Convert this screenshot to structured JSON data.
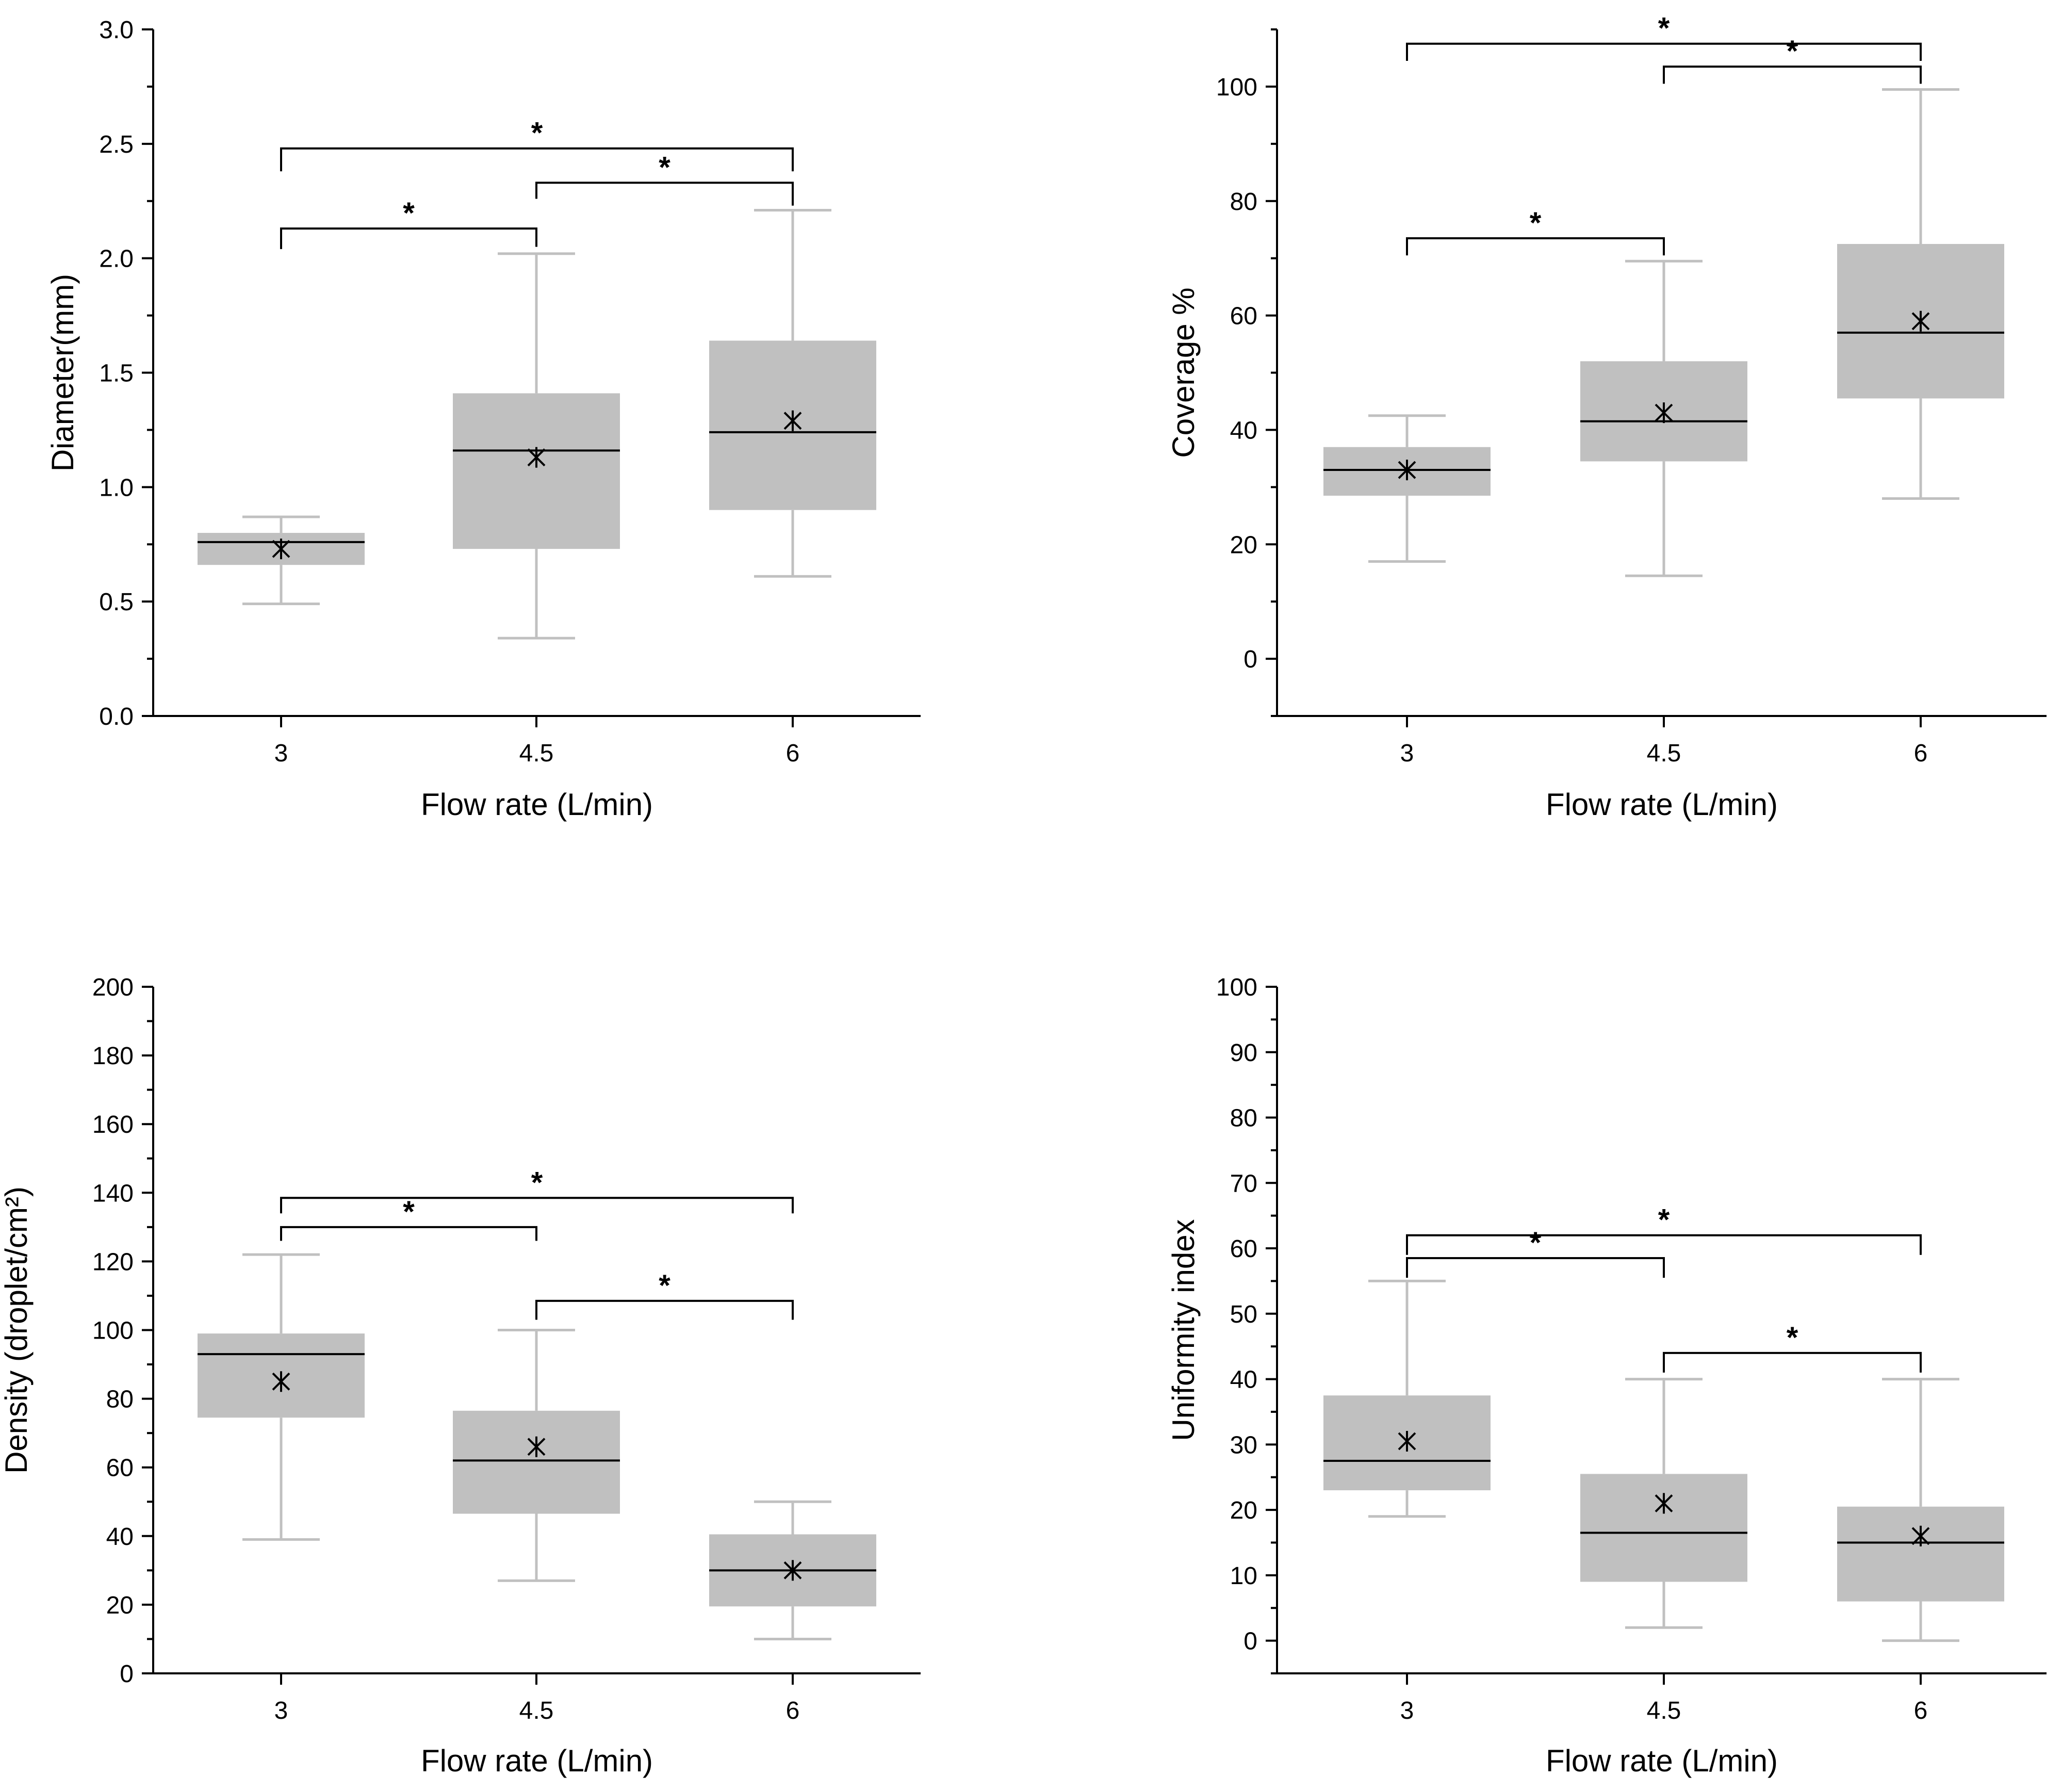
{
  "colors": {
    "box_fill": "#c0c0c0",
    "whisker": "#c0c0c0",
    "median": "#000000",
    "axis": "#000000",
    "mean_marker": "#000000"
  },
  "chart_data": [
    {
      "type": "box",
      "xlabel": "Flow rate (L/min)",
      "ylabel": "Diameter(mm)",
      "categories": [
        "3",
        "4.5",
        "6"
      ],
      "ylim": [
        0,
        3
      ],
      "yticks": [
        0,
        0.5,
        1,
        1.5,
        2,
        2.5,
        3
      ],
      "ytick_labels": [
        "0.0",
        "0.5",
        "1.0",
        "1.5",
        "2.0",
        "2.5",
        "3.0"
      ],
      "yminor": [
        0.25,
        0.75,
        1.25,
        1.75,
        2.25,
        2.75
      ],
      "boxes": [
        {
          "category": "3",
          "min": 0.49,
          "q1": 0.66,
          "median": 0.76,
          "q3": 0.8,
          "max": 0.87,
          "mean": 0.73
        },
        {
          "category": "4.5",
          "min": 0.34,
          "q1": 0.73,
          "median": 1.16,
          "q3": 1.41,
          "max": 2.02,
          "mean": 1.13
        },
        {
          "category": "6",
          "min": 0.61,
          "q1": 0.9,
          "median": 1.24,
          "q3": 1.64,
          "max": 2.21,
          "mean": 1.29
        }
      ],
      "significance": [
        {
          "from": 0,
          "to": 1,
          "y": 2.13,
          "legs": [
            2.04,
            2.05
          ],
          "label": "*"
        },
        {
          "from": 1,
          "to": 2,
          "y": 2.33,
          "legs": [
            2.26,
            2.23
          ],
          "label": "*"
        },
        {
          "from": 0,
          "to": 2,
          "y": 2.48,
          "legs": [
            2.38,
            2.38
          ],
          "label": "*"
        }
      ]
    },
    {
      "type": "box",
      "xlabel": "Flow rate (L/min)",
      "ylabel": "Coverage %",
      "categories": [
        "3",
        "4.5",
        "6"
      ],
      "ylim": [
        -10,
        110
      ],
      "yticks": [
        0,
        20,
        40,
        60,
        80,
        100
      ],
      "ytick_labels": [
        "0",
        "20",
        "40",
        "60",
        "80",
        "100"
      ],
      "yminor": [
        -10,
        10,
        30,
        50,
        70,
        90,
        110
      ],
      "boxes": [
        {
          "category": "3",
          "min": 17,
          "q1": 28.5,
          "median": 33,
          "q3": 37,
          "max": 42.5,
          "mean": 33
        },
        {
          "category": "4.5",
          "min": 14.5,
          "q1": 34.5,
          "median": 41.5,
          "q3": 52,
          "max": 69.5,
          "mean": 43
        },
        {
          "category": "6",
          "min": 28,
          "q1": 45.5,
          "median": 57,
          "q3": 72.5,
          "max": 99.5,
          "mean": 59
        }
      ],
      "significance": [
        {
          "from": 0,
          "to": 1,
          "y": 73.5,
          "legs": [
            70.5,
            70.5
          ],
          "label": "*"
        },
        {
          "from": 1,
          "to": 2,
          "y": 103.5,
          "legs": [
            100.5,
            100.5
          ],
          "label": "*"
        },
        {
          "from": 0,
          "to": 2,
          "y": 107.5,
          "legs": [
            104.5,
            104.5
          ],
          "label": "*"
        }
      ]
    },
    {
      "type": "box",
      "xlabel": "Flow rate (L/min)",
      "ylabel": "Density (droplet/cm²)",
      "categories": [
        "3",
        "4.5",
        "6"
      ],
      "ylim": [
        0,
        200
      ],
      "yticks": [
        0,
        20,
        40,
        60,
        80,
        100,
        120,
        140,
        160,
        180,
        200
      ],
      "ytick_labels": [
        "0",
        "20",
        "40",
        "60",
        "80",
        "100",
        "120",
        "140",
        "160",
        "180",
        "200"
      ],
      "yminor": [
        10,
        30,
        50,
        70,
        90,
        110,
        130,
        150,
        170,
        190
      ],
      "boxes": [
        {
          "category": "3",
          "min": 39,
          "q1": 74.5,
          "median": 93,
          "q3": 99,
          "max": 122,
          "mean": 85
        },
        {
          "category": "4.5",
          "min": 27,
          "q1": 46.5,
          "median": 62,
          "q3": 76.5,
          "max": 100,
          "mean": 66
        },
        {
          "category": "6",
          "min": 10,
          "q1": 19.5,
          "median": 30,
          "q3": 40.5,
          "max": 50,
          "mean": 30
        }
      ],
      "significance": [
        {
          "from": 0,
          "to": 1,
          "y": 130,
          "legs": [
            126,
            126
          ],
          "label": "*"
        },
        {
          "from": 1,
          "to": 2,
          "y": 108.5,
          "legs": [
            103,
            103
          ],
          "label": "*"
        },
        {
          "from": 0,
          "to": 2,
          "y": 138.5,
          "legs": [
            134,
            134
          ],
          "label": "*"
        }
      ]
    },
    {
      "type": "box",
      "xlabel": "Flow rate (L/min)",
      "ylabel": "Uniformity index",
      "categories": [
        "3",
        "4.5",
        "6"
      ],
      "ylim": [
        -5,
        100
      ],
      "yticks": [
        0,
        10,
        20,
        30,
        40,
        50,
        60,
        70,
        80,
        90,
        100
      ],
      "ytick_labels": [
        "0",
        "10",
        "20",
        "30",
        "40",
        "50",
        "60",
        "70",
        "80",
        "90",
        "100"
      ],
      "yminor": [
        -5,
        5,
        15,
        25,
        35,
        45,
        55,
        65,
        75,
        85,
        95
      ],
      "boxes": [
        {
          "category": "3",
          "min": 19,
          "q1": 23,
          "median": 27.5,
          "q3": 37.5,
          "max": 55,
          "mean": 30.5
        },
        {
          "category": "4.5",
          "min": 2,
          "q1": 9,
          "median": 16.5,
          "q3": 25.5,
          "max": 40,
          "mean": 21
        },
        {
          "category": "6",
          "min": 0,
          "q1": 6,
          "median": 15,
          "q3": 20.5,
          "max": 40,
          "mean": 16
        }
      ],
      "significance": [
        {
          "from": 0,
          "to": 1,
          "y": 58.5,
          "legs": [
            55.5,
            55.5
          ],
          "label": "*"
        },
        {
          "from": 1,
          "to": 2,
          "y": 44,
          "legs": [
            41,
            41
          ],
          "label": "*"
        },
        {
          "from": 0,
          "to": 2,
          "y": 62,
          "legs": [
            59,
            59
          ],
          "label": "*"
        }
      ]
    }
  ]
}
